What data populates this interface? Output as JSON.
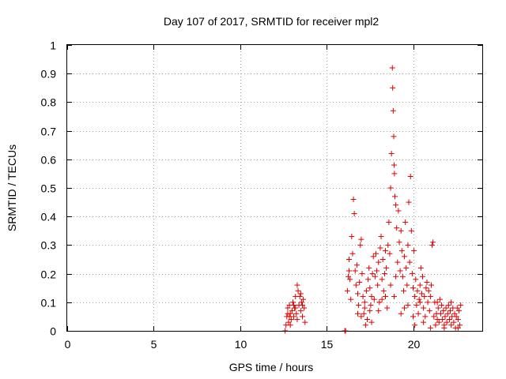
{
  "chart_data": {
    "type": "scatter",
    "title": "Day 107 of 2017, SRMTID for receiver mpl2",
    "xlabel": "GPS time / hours",
    "ylabel": "SRMTID / TECUs",
    "xlim": [
      0,
      24
    ],
    "ylim": [
      0,
      1
    ],
    "xticks": [
      0,
      5,
      10,
      15,
      20
    ],
    "xtick_labels": [
      "0",
      "5",
      "10",
      "15",
      "20"
    ],
    "yticks": [
      0,
      0.1,
      0.2,
      0.3,
      0.4,
      0.5,
      0.6,
      0.7,
      0.8,
      0.9,
      1
    ],
    "ytick_labels": [
      "0",
      "0.1",
      "0.2",
      "0.3",
      "0.4",
      "0.5",
      "0.6",
      "0.7",
      "0.8",
      "0.9",
      "1"
    ],
    "grid": true,
    "marker": "+",
    "color": "#e00000",
    "series": [
      {
        "name": "SRMTID",
        "points": [
          [
            12.6,
            0.0
          ],
          [
            12.65,
            0.02
          ],
          [
            12.7,
            0.05
          ],
          [
            12.75,
            0.08
          ],
          [
            12.8,
            0.03
          ],
          [
            12.85,
            0.09
          ],
          [
            12.9,
            0.06
          ],
          [
            12.95,
            0.04
          ],
          [
            13.0,
            0.07
          ],
          [
            13.05,
            0.1
          ],
          [
            13.1,
            0.05
          ],
          [
            13.15,
            0.08
          ],
          [
            13.2,
            0.12
          ],
          [
            13.25,
            0.06
          ],
          [
            13.3,
            0.16
          ],
          [
            13.35,
            0.14
          ],
          [
            13.4,
            0.09
          ],
          [
            13.45,
            0.12
          ],
          [
            13.5,
            0.07
          ],
          [
            13.55,
            0.1
          ],
          [
            13.6,
            0.05
          ],
          [
            13.65,
            0.11
          ],
          [
            13.7,
            0.08
          ],
          [
            13.75,
            0.03
          ],
          [
            12.9,
            0.02
          ],
          [
            13.1,
            0.09
          ],
          [
            13.3,
            0.04
          ],
          [
            13.5,
            0.13
          ],
          [
            12.75,
            0.06
          ],
          [
            13.6,
            0.09
          ],
          [
            13.2,
            0.08
          ],
          [
            12.85,
            0.05
          ],
          [
            16.05,
            0.0
          ],
          [
            16.1,
            0.0
          ],
          [
            16.2,
            0.14
          ],
          [
            16.25,
            0.19
          ],
          [
            16.3,
            0.25
          ],
          [
            16.35,
            0.18
          ],
          [
            16.4,
            0.11
          ],
          [
            16.45,
            0.33
          ],
          [
            16.5,
            0.27
          ],
          [
            16.55,
            0.46
          ],
          [
            16.6,
            0.41
          ],
          [
            16.65,
            0.21
          ],
          [
            16.7,
            0.16
          ],
          [
            16.75,
            0.23
          ],
          [
            16.8,
            0.13
          ],
          [
            16.85,
            0.09
          ],
          [
            16.9,
            0.17
          ],
          [
            16.95,
            0.3
          ],
          [
            17.0,
            0.32
          ],
          [
            17.05,
            0.2
          ],
          [
            17.1,
            0.12
          ],
          [
            17.15,
            0.06
          ],
          [
            17.2,
            0.1
          ],
          [
            17.25,
            0.02
          ],
          [
            17.3,
            0.14
          ],
          [
            17.35,
            0.04
          ],
          [
            17.4,
            0.18
          ],
          [
            17.45,
            0.22
          ],
          [
            17.5,
            0.15
          ],
          [
            17.55,
            0.09
          ],
          [
            17.6,
            0.12
          ],
          [
            17.65,
            0.2
          ],
          [
            17.7,
            0.26
          ],
          [
            17.75,
            0.11
          ],
          [
            17.8,
            0.19
          ],
          [
            17.85,
            0.27
          ],
          [
            17.9,
            0.21
          ],
          [
            17.95,
            0.16
          ],
          [
            18.0,
            0.24
          ],
          [
            18.05,
            0.1
          ],
          [
            18.1,
            0.29
          ],
          [
            18.15,
            0.33
          ],
          [
            18.2,
            0.18
          ],
          [
            18.25,
            0.25
          ],
          [
            18.3,
            0.14
          ],
          [
            18.35,
            0.2
          ],
          [
            18.4,
            0.12
          ],
          [
            18.45,
            0.22
          ],
          [
            18.5,
            0.08
          ],
          [
            18.55,
            0.3
          ],
          [
            18.6,
            0.38
          ],
          [
            18.65,
            0.27
          ],
          [
            18.7,
            0.5
          ],
          [
            18.75,
            0.62
          ],
          [
            18.8,
            0.92
          ],
          [
            18.82,
            0.85
          ],
          [
            18.85,
            0.77
          ],
          [
            18.88,
            0.68
          ],
          [
            18.9,
            0.58
          ],
          [
            18.92,
            0.55
          ],
          [
            18.95,
            0.47
          ],
          [
            19.0,
            0.44
          ],
          [
            19.05,
            0.36
          ],
          [
            19.1,
            0.24
          ],
          [
            19.15,
            0.42
          ],
          [
            19.2,
            0.31
          ],
          [
            19.25,
            0.21
          ],
          [
            19.3,
            0.35
          ],
          [
            19.35,
            0.28
          ],
          [
            19.4,
            0.19
          ],
          [
            19.45,
            0.14
          ],
          [
            19.5,
            0.26
          ],
          [
            19.55,
            0.38
          ],
          [
            19.6,
            0.22
          ],
          [
            19.65,
            0.16
          ],
          [
            19.7,
            0.3
          ],
          [
            19.75,
            0.45
          ],
          [
            19.8,
            0.24
          ],
          [
            19.85,
            0.54
          ],
          [
            19.9,
            0.35
          ],
          [
            19.95,
            0.2
          ],
          [
            20.0,
            0.15
          ],
          [
            20.05,
            0.28
          ],
          [
            20.1,
            0.12
          ],
          [
            20.15,
            0.18
          ],
          [
            20.2,
            0.09
          ],
          [
            20.25,
            0.14
          ],
          [
            20.3,
            0.06
          ],
          [
            20.35,
            0.11
          ],
          [
            20.4,
            0.16
          ],
          [
            20.45,
            0.22
          ],
          [
            20.5,
            0.13
          ],
          [
            20.55,
            0.19
          ],
          [
            20.6,
            0.08
          ],
          [
            20.65,
            0.12
          ],
          [
            20.7,
            0.05
          ],
          [
            20.75,
            0.15
          ],
          [
            20.8,
            0.17
          ],
          [
            20.85,
            0.1
          ],
          [
            20.9,
            0.14
          ],
          [
            20.95,
            0.07
          ],
          [
            21.0,
            0.12
          ],
          [
            21.05,
            0.16
          ],
          [
            21.1,
            0.3
          ],
          [
            21.15,
            0.31
          ],
          [
            21.2,
            0.05
          ],
          [
            21.25,
            0.1
          ],
          [
            21.3,
            0.02
          ],
          [
            21.35,
            0.06
          ],
          [
            21.4,
            0.04
          ],
          [
            21.45,
            0.08
          ],
          [
            21.5,
            0.03
          ],
          [
            21.55,
            0.11
          ],
          [
            21.6,
            0.06
          ],
          [
            21.65,
            0.09
          ],
          [
            21.7,
            0.04
          ],
          [
            21.75,
            0.07
          ],
          [
            21.8,
            0.02
          ],
          [
            21.85,
            0.05
          ],
          [
            21.9,
            0.08
          ],
          [
            21.95,
            0.03
          ],
          [
            22.0,
            0.06
          ],
          [
            22.05,
            0.09
          ],
          [
            22.1,
            0.04
          ],
          [
            22.15,
            0.07
          ],
          [
            22.2,
            0.02
          ],
          [
            22.25,
            0.05
          ],
          [
            22.3,
            0.08
          ],
          [
            22.35,
            0.03
          ],
          [
            22.4,
            0.06
          ],
          [
            22.45,
            0.01
          ],
          [
            22.5,
            0.05
          ],
          [
            22.55,
            0.08
          ],
          [
            22.6,
            0.04
          ],
          [
            22.65,
            0.07
          ],
          [
            22.7,
            0.02
          ],
          [
            22.75,
            0.09
          ],
          [
            16.3,
            0.21
          ],
          [
            16.8,
            0.06
          ],
          [
            17.2,
            0.08
          ],
          [
            17.6,
            0.03
          ],
          [
            18.0,
            0.07
          ],
          [
            18.4,
            0.28
          ],
          [
            18.9,
            0.12
          ],
          [
            19.3,
            0.06
          ],
          [
            19.7,
            0.09
          ],
          [
            20.1,
            0.02
          ],
          [
            20.6,
            0.03
          ],
          [
            21.0,
            0.01
          ],
          [
            21.4,
            0.1
          ],
          [
            21.8,
            0.01
          ],
          [
            22.2,
            0.1
          ],
          [
            22.6,
            0.01
          ],
          [
            17.0,
            0.05
          ],
          [
            17.5,
            0.07
          ],
          [
            18.2,
            0.11
          ],
          [
            18.7,
            0.16
          ],
          [
            19.0,
            0.19
          ],
          [
            19.5,
            0.08
          ],
          [
            20.0,
            0.05
          ],
          [
            20.4,
            0.1
          ]
        ]
      }
    ]
  }
}
